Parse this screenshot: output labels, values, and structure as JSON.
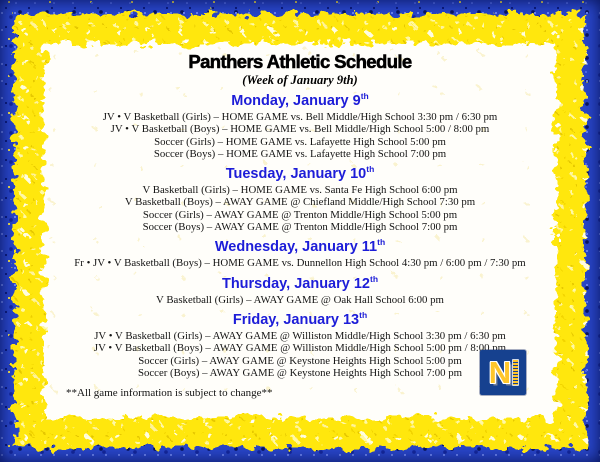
{
  "page": {
    "title": "Panthers Athletic Schedule",
    "subtitle": "(Week of January 9th)",
    "footer": "**All game information is subject to change**",
    "logo_letter": "N"
  },
  "colors": {
    "border_blue": "#2946c8",
    "border_yellow": "#ffe70c",
    "header_blue": "#1d1dd8",
    "logo_navy": "#16418f",
    "logo_yellow": "#ffc62b"
  },
  "schedule": [
    {
      "day": "Monday, January 9",
      "sup": "th",
      "lines": [
        "JV • V Basketball (Girls) – HOME GAME vs. Bell Middle/High School 3:30 pm / 6:30 pm",
        "JV • V Basketball (Boys) – HOME GAME vs. Bell Middle/High School 5:00 / 8:00 pm",
        "Soccer (Girls) – HOME GAME vs. Lafayette High School 5:00 pm",
        "Soccer (Boys) – HOME GAME vs. Lafayette High School 7:00 pm"
      ]
    },
    {
      "day": "Tuesday, January 10",
      "sup": "th",
      "lines": [
        "V Basketball (Girls) – HOME GAME vs. Santa Fe High School 6:00 pm",
        "V Basketball (Boys) – AWAY GAME @ Chiefland Middle/High School 7:30 pm",
        "Soccer (Girls) – AWAY GAME @ Trenton Middle/High School 5:00 pm",
        "Soccer (Boys) – AWAY GAME @ Trenton Middle/High School 7:00 pm"
      ]
    },
    {
      "day": "Wednesday, January 11",
      "sup": "th",
      "lines": [
        "Fr • JV • V Basketball (Boys) – HOME GAME vs. Dunnellon High School 4:30 pm / 6:00 pm / 7:30 pm"
      ]
    },
    {
      "day": "Thursday, January 12",
      "sup": "th",
      "lines": [
        "V Basketball (Girls) – AWAY GAME @ Oak Hall School 6:00 pm"
      ]
    },
    {
      "day": "Friday, January 13",
      "sup": "th",
      "lines": [
        "JV • V Basketball (Girls) – AWAY GAME @ Williston Middle/High School 3:30 pm / 6:30 pm",
        "JV • V Basketball (Boys) – AWAY GAME @ Williston Middle/High School 5:00 pm / 8:00 pm",
        "Soccer (Girls) – AWAY GAME @ Keystone Heights High School 5:00 pm",
        "Soccer (Boys) – AWAY GAME @ Keystone Heights High School 7:00 pm"
      ]
    }
  ]
}
